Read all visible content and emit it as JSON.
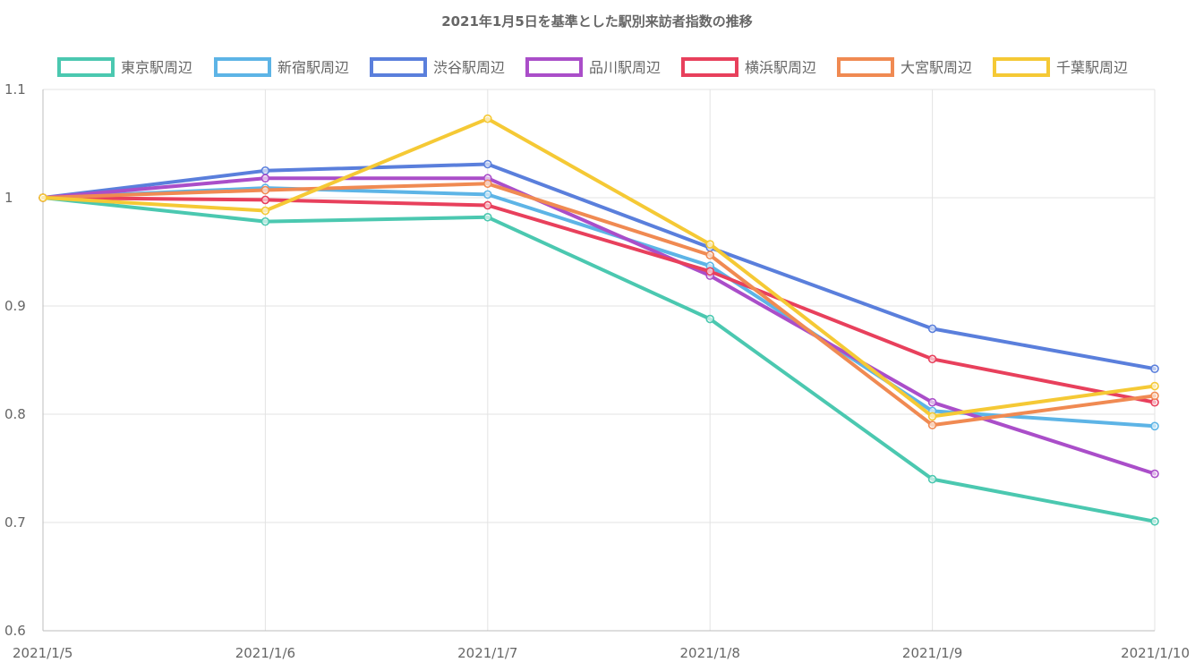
{
  "chart_data": {
    "type": "line",
    "title": "2021年1月5日を基準とした駅別来訪者指数の推移",
    "xlabel": "",
    "ylabel": "",
    "categories": [
      "2021/1/5",
      "2021/1/6",
      "2021/1/7",
      "2021/1/8",
      "2021/1/9",
      "2021/1/10"
    ],
    "ylim": [
      0.6,
      1.1
    ],
    "yticks": [
      0.6,
      0.7,
      0.8,
      0.9,
      1,
      1.1
    ],
    "grid": true,
    "legend_position": "top",
    "series": [
      {
        "name": "東京駅周辺",
        "color": "#4bc8b0",
        "values": [
          1.0,
          0.978,
          0.982,
          0.888,
          0.74,
          0.701
        ]
      },
      {
        "name": "新宿駅周辺",
        "color": "#5db4e6",
        "values": [
          1.0,
          1.009,
          1.003,
          0.937,
          0.803,
          0.789
        ]
      },
      {
        "name": "渋谷駅周辺",
        "color": "#5a7fdc",
        "values": [
          1.0,
          1.025,
          1.031,
          0.954,
          0.879,
          0.842
        ]
      },
      {
        "name": "品川駅周辺",
        "color": "#aa4ec9",
        "values": [
          1.0,
          1.018,
          1.018,
          0.928,
          0.811,
          0.745
        ]
      },
      {
        "name": "横浜駅周辺",
        "color": "#e8405c",
        "values": [
          1.0,
          0.998,
          0.993,
          0.932,
          0.851,
          0.811
        ]
      },
      {
        "name": "大宮駅周辺",
        "color": "#f08a52",
        "values": [
          1.0,
          1.007,
          1.013,
          0.947,
          0.79,
          0.817
        ]
      },
      {
        "name": "千葉駅周辺",
        "color": "#f5c935",
        "values": [
          1.0,
          0.988,
          1.073,
          0.957,
          0.798,
          0.826
        ]
      }
    ]
  }
}
